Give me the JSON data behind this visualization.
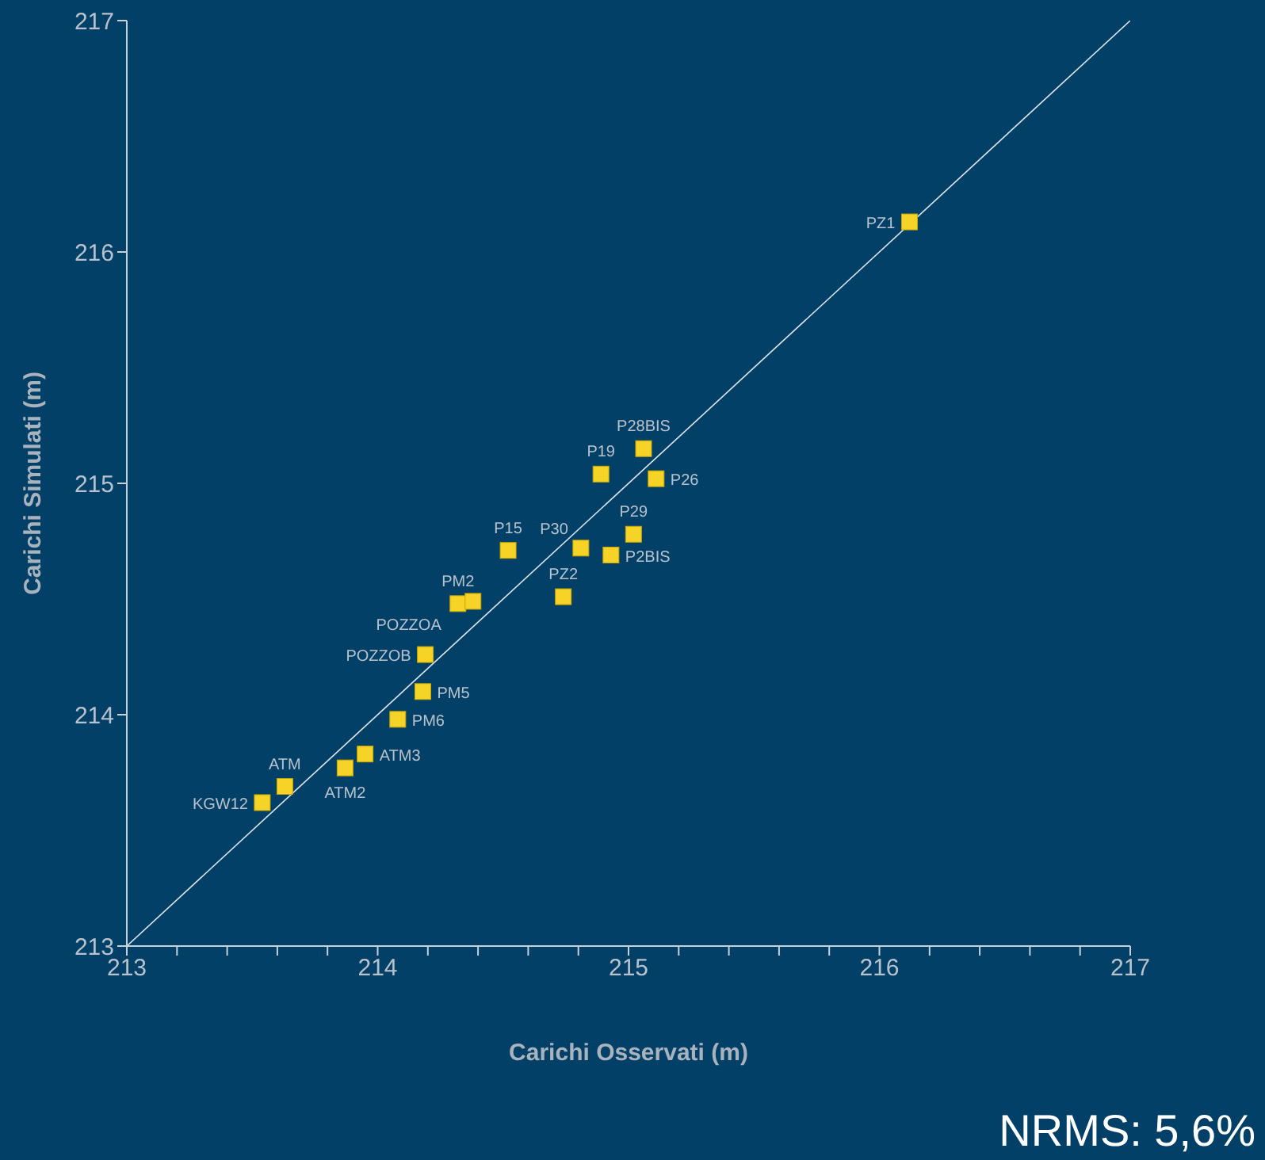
{
  "chart_data": {
    "type": "scatter",
    "xlabel": "Carichi Osservati (m)",
    "ylabel": "Carichi Simulati (m)",
    "xlim": [
      213,
      217
    ],
    "ylim": [
      213,
      217
    ],
    "xticks": [
      213,
      {
        "value": 213.2,
        "label": null
      },
      {
        "value": 213.4,
        "label": null
      },
      {
        "value": 213.6,
        "label": null
      },
      {
        "value": 213.8,
        "label": null
      },
      214,
      {
        "value": 214.2,
        "label": null
      },
      {
        "value": 214.4,
        "label": null
      },
      {
        "value": 214.6,
        "label": null
      },
      {
        "value": 214.8,
        "label": null
      },
      215,
      {
        "value": 215.2,
        "label": null
      },
      {
        "value": 215.4,
        "label": null
      },
      {
        "value": 215.6,
        "label": null
      },
      {
        "value": 215.8,
        "label": null
      },
      216,
      {
        "value": 216.2,
        "label": null
      },
      {
        "value": 216.4,
        "label": null
      },
      {
        "value": 216.6,
        "label": null
      },
      {
        "value": 216.8,
        "label": null
      },
      217
    ],
    "yticks": [
      213,
      214,
      215,
      216,
      217
    ],
    "grid": false,
    "legend": false,
    "series": [
      {
        "type": "line",
        "color": "#dfe6ec",
        "x": [
          213,
          217
        ],
        "values": [
          213,
          217
        ],
        "marker": "none",
        "line_style": "solid"
      },
      {
        "color": "#f5d327",
        "marker": "square",
        "x": [
          216.12,
          215.06,
          214.89,
          215.11,
          215.02,
          214.81,
          214.93,
          214.52,
          214.74,
          214.32,
          214.38,
          214.19,
          214.18,
          214.08,
          213.95,
          213.87,
          213.63,
          213.54
        ],
        "values": [
          216.13,
          215.15,
          215.04,
          215.02,
          214.78,
          214.72,
          214.69,
          214.71,
          214.51,
          214.48,
          214.49,
          214.26,
          214.1,
          213.98,
          213.83,
          213.77,
          213.69,
          213.62
        ]
      }
    ],
    "annotations": [
      {
        "text": "PZ1",
        "x": 216.12,
        "y": 216.13
      },
      {
        "text": "P28BIS",
        "x": 215.06,
        "y": 215.15
      },
      {
        "text": "P19",
        "x": 214.89,
        "y": 215.04
      },
      {
        "text": "P26",
        "x": 215.11,
        "y": 215.02
      },
      {
        "text": "P29",
        "x": 215.02,
        "y": 214.78
      },
      {
        "text": "P30",
        "x": 214.81,
        "y": 214.72
      },
      {
        "text": "P2BIS",
        "x": 214.93,
        "y": 214.69
      },
      {
        "text": "P15",
        "x": 214.52,
        "y": 214.71
      },
      {
        "text": "PZ2",
        "x": 214.74,
        "y": 214.51
      },
      {
        "text": "PM2",
        "x": 214.32,
        "y": 214.48
      },
      {
        "text": "POZZOA",
        "x": 214.38,
        "y": 214.49
      },
      {
        "text": "POZZOB",
        "x": 214.19,
        "y": 214.26
      },
      {
        "text": "PM5",
        "x": 214.18,
        "y": 214.1
      },
      {
        "text": "PM6",
        "x": 214.08,
        "y": 213.98
      },
      {
        "text": "ATM3",
        "x": 213.95,
        "y": 213.83
      },
      {
        "text": "ATM2",
        "x": 213.87,
        "y": 213.77
      },
      {
        "text": "ATM",
        "x": 213.63,
        "y": 213.69
      },
      {
        "text": "KGW12",
        "x": 213.54,
        "y": 213.62
      },
      "NRMS: 5,6%"
    ]
  }
}
